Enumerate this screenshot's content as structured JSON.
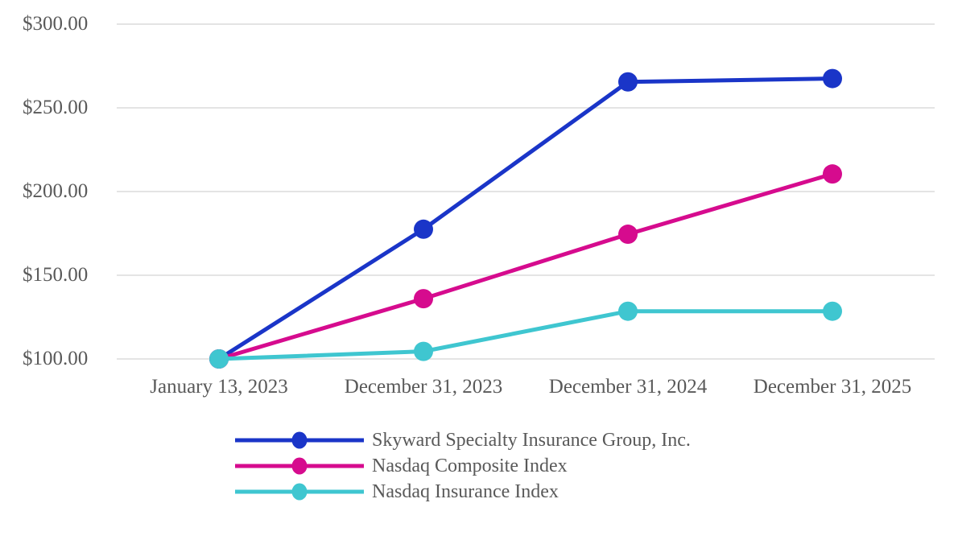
{
  "chart_data": {
    "type": "line",
    "title": "",
    "xlabel": "",
    "ylabel": "",
    "categories": [
      "January 13, 2023",
      "December 31, 2023",
      "December 31, 2024",
      "December 31, 2025"
    ],
    "series": [
      {
        "name": "Skyward Specialty Insurance Group, Inc.",
        "color": "#1A35C8",
        "values": [
          100.0,
          177.5,
          265.5,
          267.5
        ]
      },
      {
        "name": "Nasdaq Composite Index",
        "color": "#D60B8E",
        "values": [
          100.0,
          136.0,
          174.5,
          210.5
        ]
      },
      {
        "name": "Nasdaq Insurance Index",
        "color": "#3FC6D0",
        "values": [
          100.0,
          104.5,
          128.5,
          128.5
        ]
      }
    ],
    "ylim": [
      100,
      300
    ],
    "yticks": [
      {
        "value": 300,
        "label": "$300.00"
      },
      {
        "value": 250,
        "label": "$250.00"
      },
      {
        "value": 200,
        "label": "$200.00"
      },
      {
        "value": 150,
        "label": "$150.00"
      },
      {
        "value": 100,
        "label": "$100.00"
      }
    ],
    "grid": "horizontal-only",
    "legend_position": "bottom-left",
    "text_color": "#595959",
    "gridline_color": "#E4E4E4",
    "background_color": "#FFFFFF"
  }
}
